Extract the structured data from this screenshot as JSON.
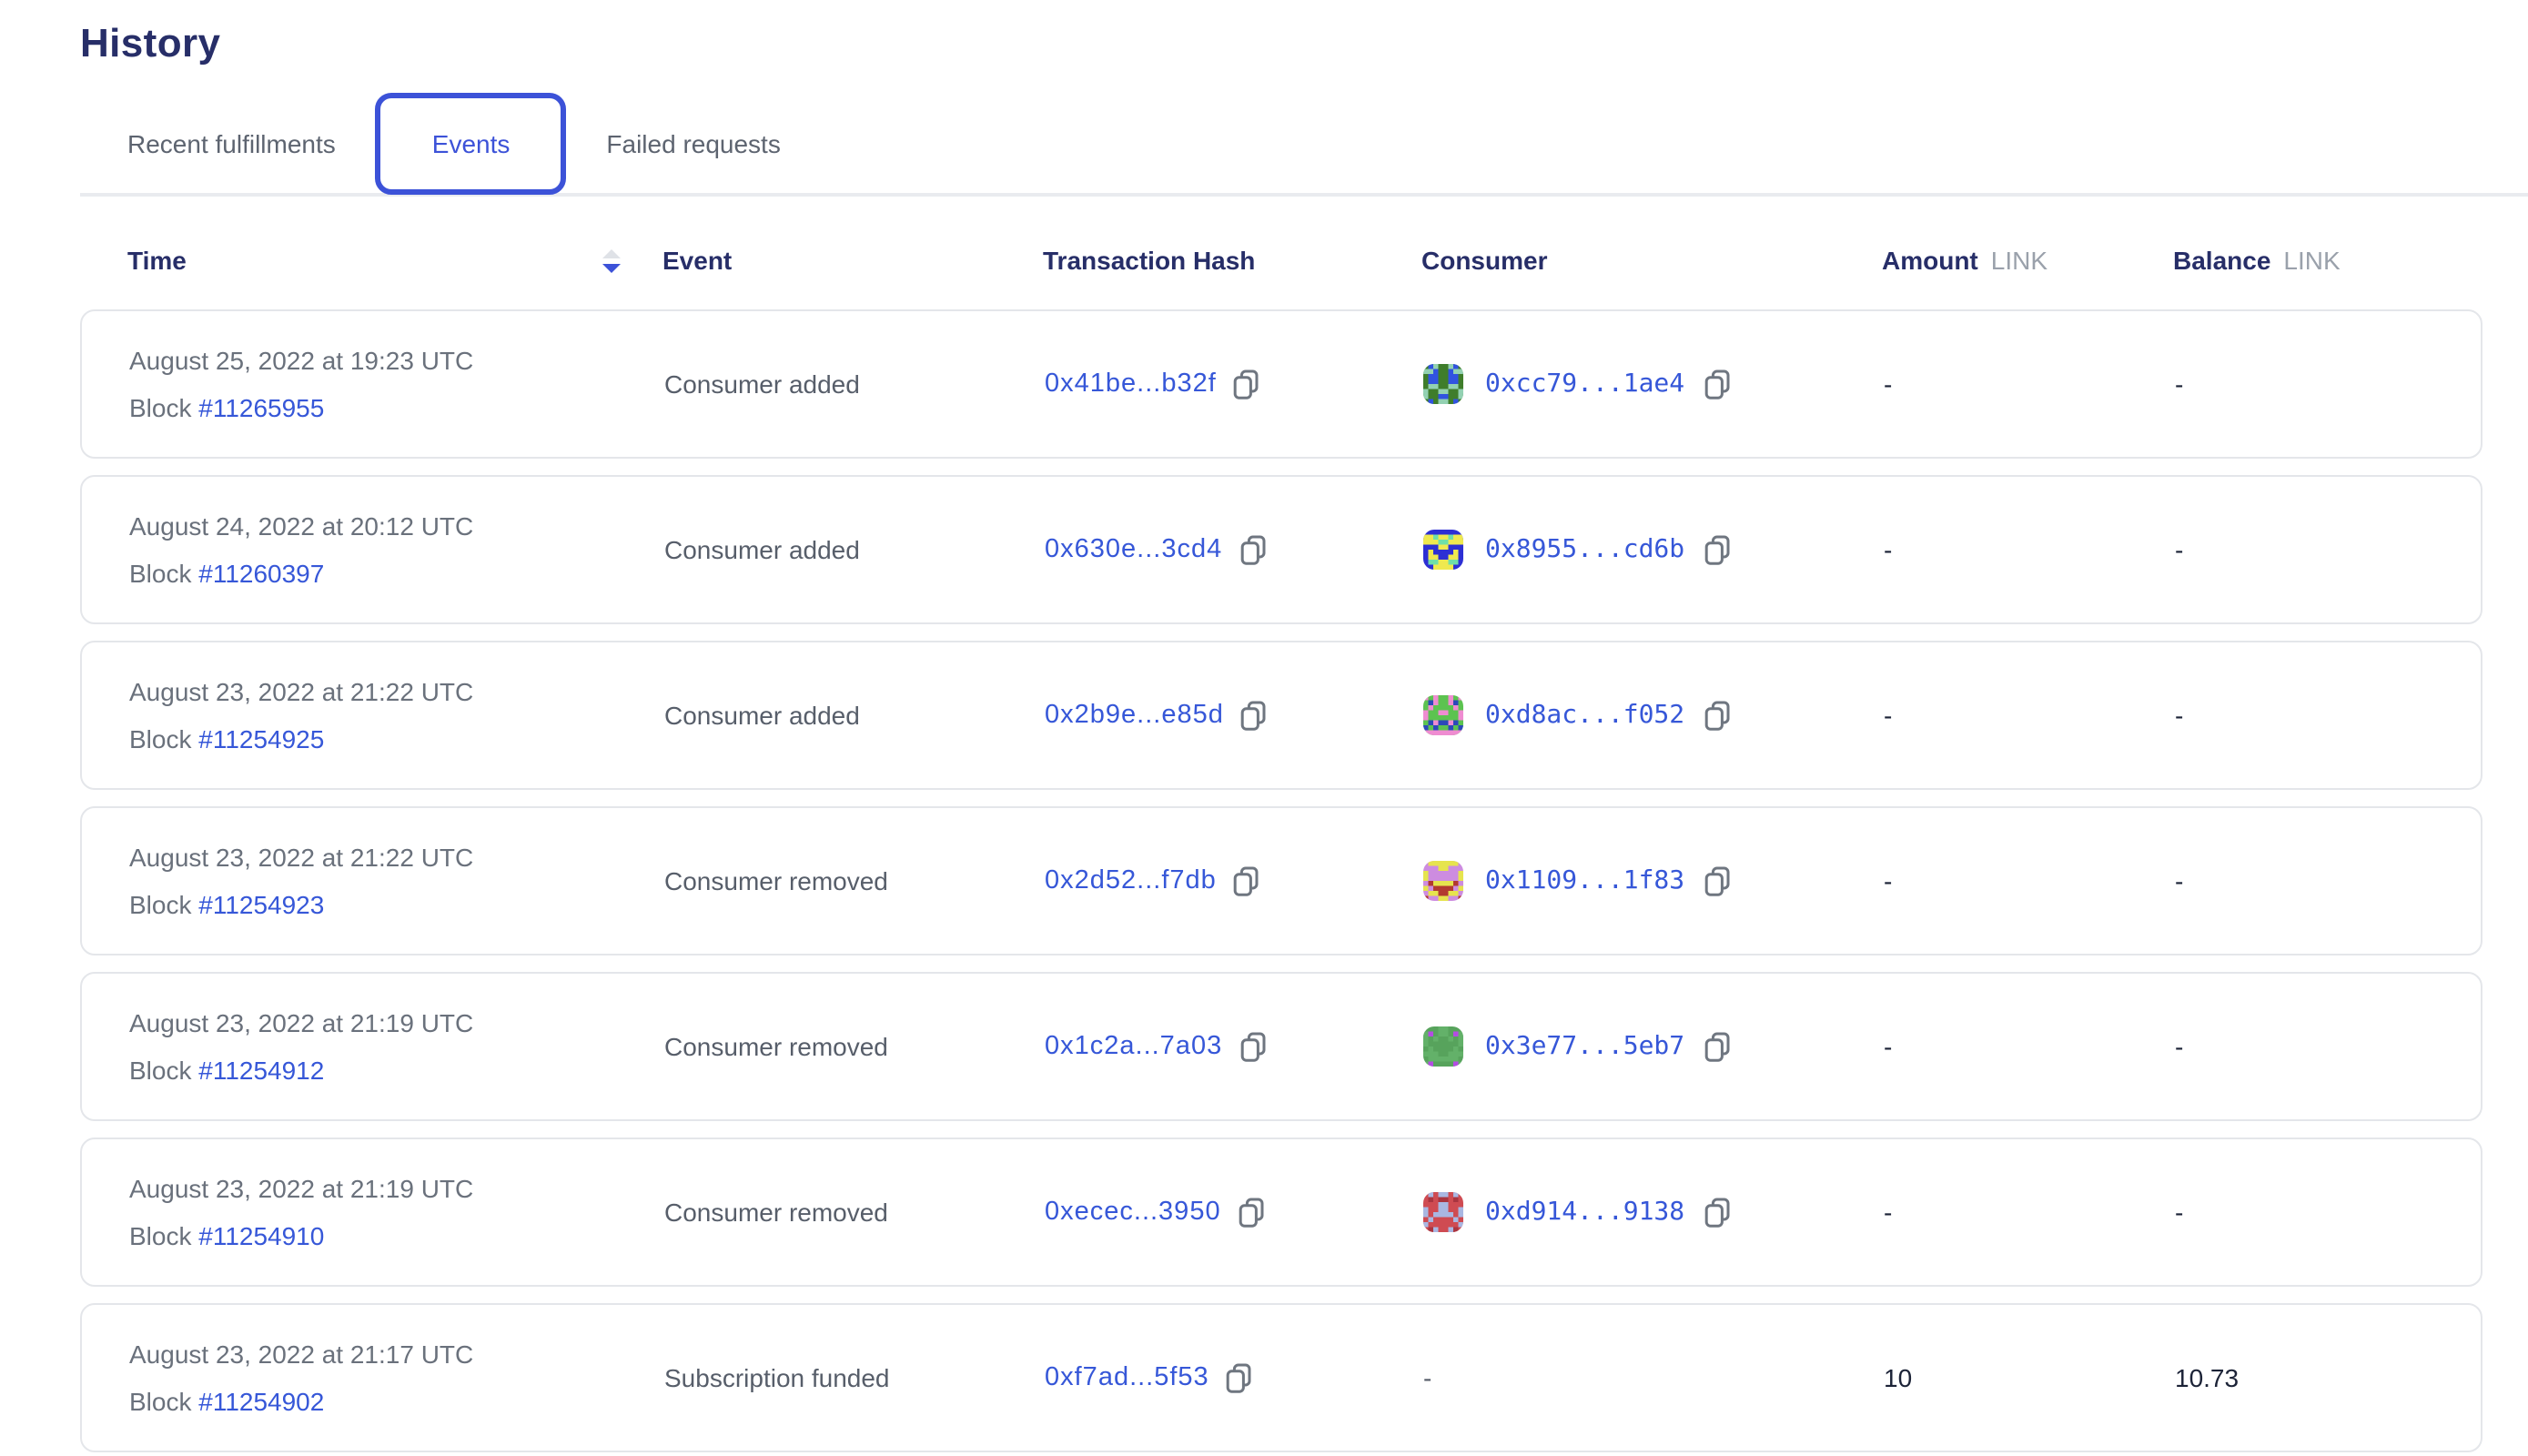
{
  "page": {
    "title": "History"
  },
  "tabs": [
    {
      "label": "Recent fulfillments",
      "active": false
    },
    {
      "label": "Events",
      "active": true
    },
    {
      "label": "Failed requests",
      "active": false
    }
  ],
  "table": {
    "columns": {
      "time": "Time",
      "event": "Event",
      "tx": "Transaction Hash",
      "consumer": "Consumer",
      "amount": "Amount",
      "balance": "Balance",
      "unit": "LINK"
    },
    "sort": {
      "column": "Time",
      "direction": "descending"
    },
    "labels": {
      "block": "Block",
      "empty": "-"
    },
    "rows": [
      {
        "date": "August 25, 2022 at 19:23 UTC",
        "block": "#11265955",
        "event": "Consumer added",
        "tx": "0x41be...b32f",
        "consumer": {
          "address": "0xcc79...1ae4",
          "avatar": {
            "bg": "#3f7d2b",
            "color": "#3153e0",
            "spot": "#93d1b2"
          }
        },
        "amount": "-",
        "balance": "-"
      },
      {
        "date": "August 24, 2022 at 20:12 UTC",
        "block": "#11260397",
        "event": "Consumer added",
        "tx": "0x630e...3cd4",
        "consumer": {
          "address": "0x8955...cd6b",
          "avatar": {
            "bg": "#2d2fd4",
            "color": "#efe94f",
            "spot": "#6fdfa8"
          }
        },
        "amount": "-",
        "balance": "-"
      },
      {
        "date": "August 23, 2022 at 21:22 UTC",
        "block": "#11254925",
        "event": "Consumer added",
        "tx": "0x2b9e...e85d",
        "consumer": {
          "address": "0xd8ac...f052",
          "avatar": {
            "bg": "#5cc350",
            "color": "#ef8cd1",
            "spot": "#2c49b9"
          }
        },
        "amount": "-",
        "balance": "-"
      },
      {
        "date": "August 23, 2022 at 21:22 UTC",
        "block": "#11254923",
        "event": "Consumer removed",
        "tx": "0x2d52...f7db",
        "consumer": {
          "address": "0x1109...1f83",
          "avatar": {
            "bg": "#cd8ce0",
            "color": "#e6e44e",
            "spot": "#b23a30"
          }
        },
        "amount": "-",
        "balance": "-"
      },
      {
        "date": "August 23, 2022 at 21:19 UTC",
        "block": "#11254912",
        "event": "Consumer removed",
        "tx": "0x1c2a...7a03",
        "consumer": {
          "address": "0x3e77...5eb7",
          "avatar": {
            "bg": "#57a35c",
            "color": "#63b169",
            "spot": "#b44ce3"
          }
        },
        "amount": "-",
        "balance": "-"
      },
      {
        "date": "August 23, 2022 at 21:19 UTC",
        "block": "#11254910",
        "event": "Consumer removed",
        "tx": "0xecec...3950",
        "consumer": {
          "address": "0xd914...9138",
          "avatar": {
            "bg": "#cf4b52",
            "color": "#a9b7e2",
            "spot": "#a93540"
          }
        },
        "amount": "-",
        "balance": "-"
      },
      {
        "date": "August 23, 2022 at 21:17 UTC",
        "block": "#11254902",
        "event": "Subscription funded",
        "tx": "0xf7ad...5f53",
        "consumer": null,
        "amount": "10",
        "balance": "10.73"
      }
    ]
  },
  "colors": {
    "heading": "#272e68",
    "accent": "#3c52d8",
    "link": "#3657d8",
    "muted": "#6a717c",
    "text2": "#575e6a",
    "border": "#e4e6ea",
    "divider": "#e9ebef",
    "values": "#1c2337",
    "sort_inactive": "#dfe2e7",
    "unit": "#9aa1ab",
    "copy": "#6f7680"
  },
  "icons": {
    "sort": "sort-descending-icon",
    "copy": "copy-icon"
  }
}
